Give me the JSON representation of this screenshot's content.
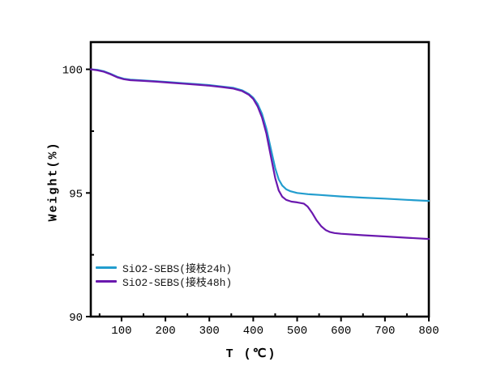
{
  "chart_data": {
    "type": "line",
    "title": "",
    "xlabel": "T (℃)",
    "ylabel": "Weight(%)",
    "xlim": [
      30,
      800
    ],
    "ylim": [
      90,
      101.1
    ],
    "x_ticks": [
      100,
      200,
      300,
      400,
      500,
      600,
      700,
      800
    ],
    "x_minor_ticks": [
      50,
      150,
      250,
      350,
      450,
      550,
      650,
      750
    ],
    "y_ticks": [
      90,
      95,
      100
    ],
    "y_minor_ticks": [
      92.5,
      97.5
    ],
    "grid": false,
    "frame_color": "#000000",
    "legend_position": "inside-lower-left",
    "series": [
      {
        "name": "SiO2-SEBS(接枝24h)",
        "color": "#229DCE",
        "points": [
          [
            30,
            100.0
          ],
          [
            45,
            99.98
          ],
          [
            60,
            99.92
          ],
          [
            75,
            99.82
          ],
          [
            90,
            99.7
          ],
          [
            105,
            99.62
          ],
          [
            120,
            99.58
          ],
          [
            150,
            99.55
          ],
          [
            180,
            99.52
          ],
          [
            210,
            99.48
          ],
          [
            240,
            99.44
          ],
          [
            270,
            99.4
          ],
          [
            300,
            99.36
          ],
          [
            330,
            99.3
          ],
          [
            355,
            99.25
          ],
          [
            375,
            99.15
          ],
          [
            390,
            99.0
          ],
          [
            400,
            98.85
          ],
          [
            410,
            98.6
          ],
          [
            420,
            98.2
          ],
          [
            430,
            97.6
          ],
          [
            440,
            96.8
          ],
          [
            450,
            96.0
          ],
          [
            458,
            95.55
          ],
          [
            466,
            95.3
          ],
          [
            475,
            95.15
          ],
          [
            485,
            95.07
          ],
          [
            500,
            95.0
          ],
          [
            525,
            94.95
          ],
          [
            550,
            94.92
          ],
          [
            600,
            94.86
          ],
          [
            650,
            94.81
          ],
          [
            700,
            94.77
          ],
          [
            750,
            94.72
          ],
          [
            800,
            94.68
          ]
        ]
      },
      {
        "name": "SiO2-SEBS(接枝48h)",
        "color": "#6A18AE",
        "points": [
          [
            30,
            100.0
          ],
          [
            45,
            99.96
          ],
          [
            60,
            99.9
          ],
          [
            75,
            99.8
          ],
          [
            90,
            99.68
          ],
          [
            105,
            99.6
          ],
          [
            120,
            99.56
          ],
          [
            150,
            99.53
          ],
          [
            180,
            99.5
          ],
          [
            210,
            99.46
          ],
          [
            240,
            99.42
          ],
          [
            270,
            99.38
          ],
          [
            300,
            99.34
          ],
          [
            330,
            99.28
          ],
          [
            355,
            99.22
          ],
          [
            375,
            99.12
          ],
          [
            390,
            98.97
          ],
          [
            400,
            98.8
          ],
          [
            410,
            98.5
          ],
          [
            420,
            98.05
          ],
          [
            430,
            97.4
          ],
          [
            440,
            96.5
          ],
          [
            450,
            95.6
          ],
          [
            458,
            95.1
          ],
          [
            466,
            94.85
          ],
          [
            475,
            94.72
          ],
          [
            487,
            94.65
          ],
          [
            500,
            94.62
          ],
          [
            515,
            94.57
          ],
          [
            524,
            94.45
          ],
          [
            534,
            94.2
          ],
          [
            544,
            93.9
          ],
          [
            555,
            93.65
          ],
          [
            565,
            93.5
          ],
          [
            575,
            93.42
          ],
          [
            585,
            93.38
          ],
          [
            600,
            93.35
          ],
          [
            650,
            93.29
          ],
          [
            700,
            93.24
          ],
          [
            750,
            93.19
          ],
          [
            800,
            93.14
          ]
        ]
      }
    ]
  }
}
